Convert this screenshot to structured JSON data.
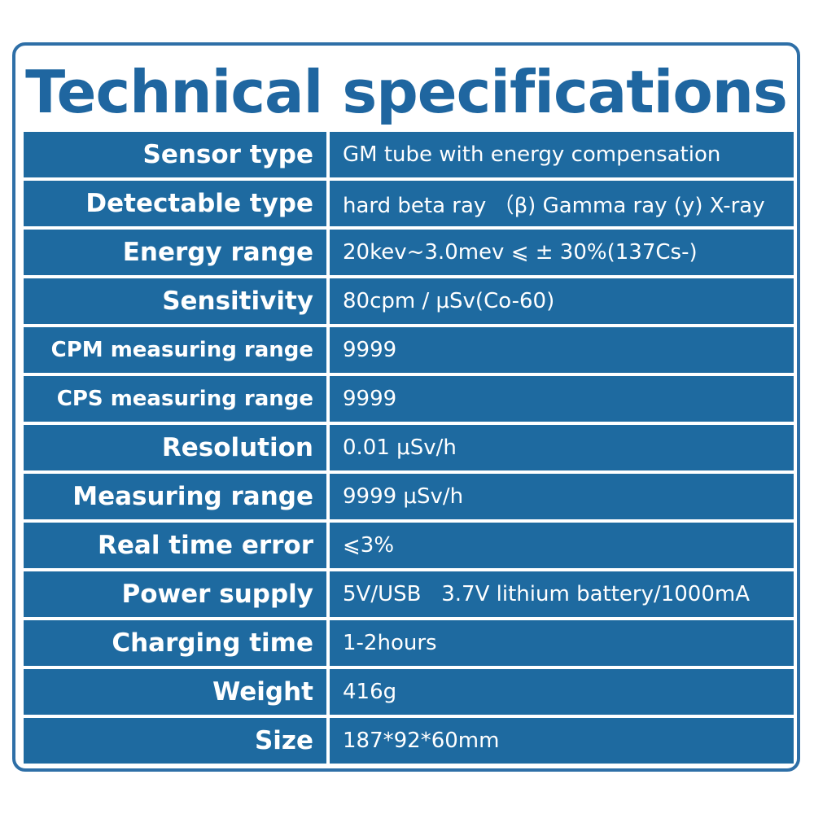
{
  "title": "Technical specifications",
  "colors": {
    "accent": "#1f66a0",
    "cell_background": "#1e6aa0",
    "border": "#2e6fa7",
    "text_on_cell": "#ffffff"
  },
  "specs": [
    {
      "label": "Sensor type",
      "value": "GM tube with energy compensation"
    },
    {
      "label": "Detectable type",
      "value": "hard beta ray （β) Gamma ray (y) X-ray"
    },
    {
      "label": "Energy range",
      "value": "20kev~3.0mev ⩽ ± 30%(137Cs-)"
    },
    {
      "label": "Sensitivity",
      "value": "80cpm / μSv(Co-60)"
    },
    {
      "label": "CPM measuring range",
      "value": "9999"
    },
    {
      "label": "CPS measuring range",
      "value": "9999"
    },
    {
      "label": "Resolution",
      "value": "0.01 μSv/h"
    },
    {
      "label": "Measuring range",
      "value": "9999 μSv/h"
    },
    {
      "label": "Real time error",
      "value": "⩽3%"
    },
    {
      "label": "Power supply",
      "value": "5V/USB   3.7V lithium battery/1000mA"
    },
    {
      "label": "Charging time",
      "value": "1-2hours"
    },
    {
      "label": "Weight",
      "value": "416g"
    },
    {
      "label": "Size",
      "value": "187*92*60mm"
    }
  ]
}
